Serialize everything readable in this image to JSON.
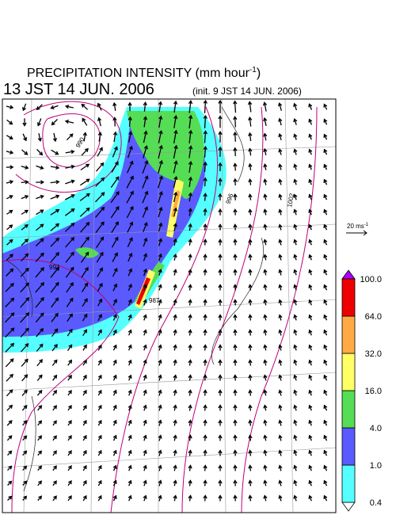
{
  "header": {
    "title": "PRECIPITATION INTENSITY (mm hour",
    "title_superscript": "-1",
    "title_close": ")",
    "valid_time": "13 JST 14 JUN. 2006",
    "init_time": "(init. 9 JST 14 JUN. 2006)"
  },
  "wind_scale": {
    "label": "20 ms",
    "superscript": "-1"
  },
  "isobar_labels": [
    "990",
    "996",
    "1002",
    "993",
    "987"
  ],
  "colorbar": {
    "labels": [
      "0.4",
      "1.0",
      "4.0",
      "16.0",
      "32.0",
      "64.0",
      "100.0"
    ],
    "colors": [
      "#55ffff",
      "#5a5aff",
      "#55dd55",
      "#ffff66",
      "#ffaa44",
      "#ee0000"
    ],
    "under_color": "#ffffff",
    "over_color": "#aa00ff"
  }
}
